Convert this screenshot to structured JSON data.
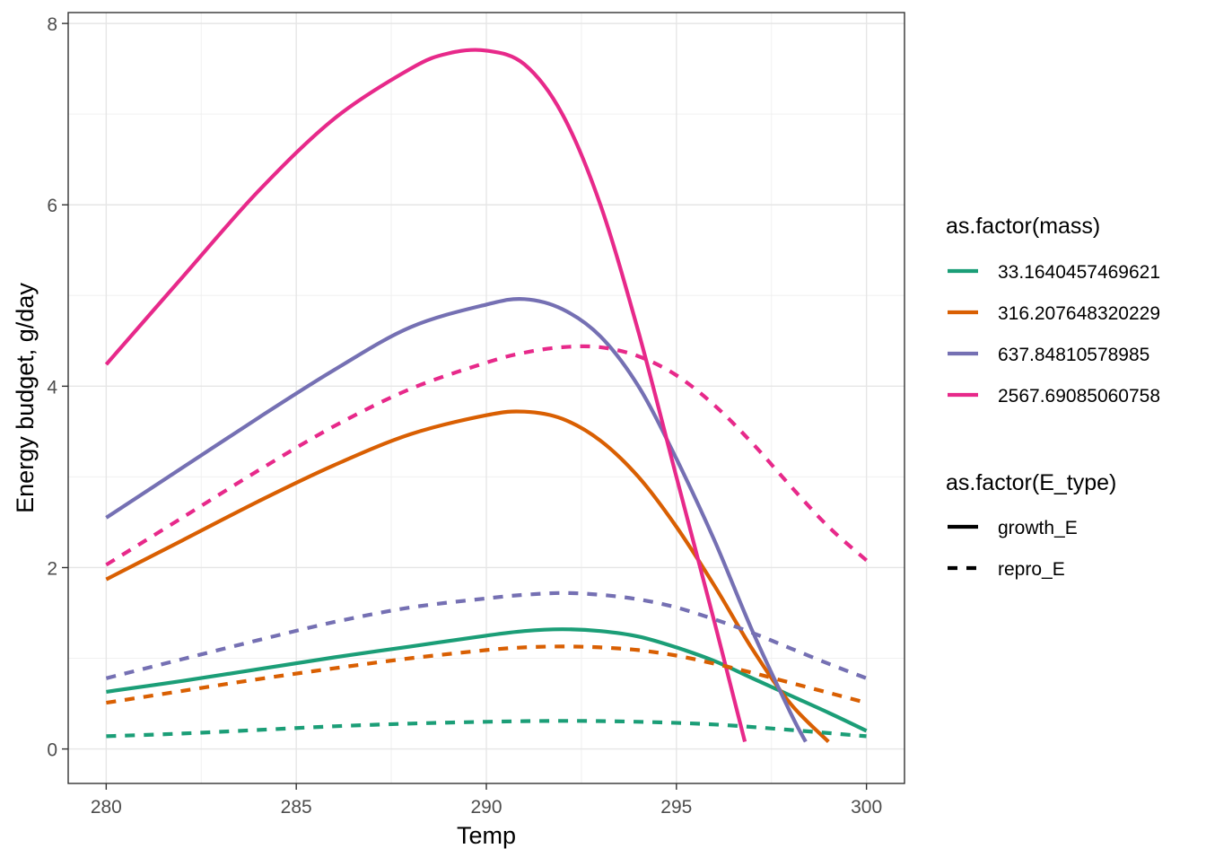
{
  "chart_data": {
    "type": "line",
    "xlabel": "Temp",
    "ylabel": "Energy budget, g/day",
    "xlim": [
      279,
      301
    ],
    "ylim": [
      -0.38,
      8.12
    ],
    "x_ticks": [
      280,
      285,
      290,
      295,
      300
    ],
    "y_ticks": [
      0,
      2,
      4,
      6,
      8
    ],
    "grid": true,
    "legend_placement": "right",
    "legends": [
      {
        "title": "as.factor(mass)",
        "entries": [
          {
            "label": "33.1640457469621",
            "color": "#1B9E77"
          },
          {
            "label": "316.207648320229",
            "color": "#D95F02"
          },
          {
            "label": "637.84810578985",
            "color": "#7570B3"
          },
          {
            "label": "2567.69085060758",
            "color": "#E7298A"
          }
        ]
      },
      {
        "title": "as.factor(E_type)",
        "entries": [
          {
            "label": "growth_E",
            "linetype": "solid"
          },
          {
            "label": "repro_E",
            "linetype": "dashed"
          }
        ]
      }
    ],
    "series": [
      {
        "mass": "33.1640457469621",
        "E_type": "growth_E",
        "color": "#1B9E77",
        "linetype": "solid",
        "x": [
          280,
          282,
          284,
          286,
          288,
          290,
          291,
          292,
          293,
          294,
          295,
          296,
          297,
          298,
          299,
          300
        ],
        "y": [
          0.63,
          0.75,
          0.88,
          1.01,
          1.13,
          1.25,
          1.3,
          1.32,
          1.3,
          1.24,
          1.12,
          0.97,
          0.78,
          0.59,
          0.4,
          0.2
        ]
      },
      {
        "mass": "316.207648320229",
        "E_type": "growth_E",
        "color": "#D95F02",
        "linetype": "solid",
        "x": [
          280,
          282,
          284,
          286,
          288,
          290,
          291,
          292,
          293,
          294,
          295,
          296,
          297,
          298,
          299
        ],
        "y": [
          1.87,
          2.3,
          2.73,
          3.13,
          3.47,
          3.68,
          3.72,
          3.64,
          3.4,
          3.0,
          2.45,
          1.8,
          1.1,
          0.5,
          0.08
        ]
      },
      {
        "mass": "637.84810578985",
        "E_type": "growth_E",
        "color": "#7570B3",
        "linetype": "solid",
        "x": [
          280,
          282,
          284,
          286,
          288,
          290,
          291,
          292,
          293,
          294,
          295,
          296,
          297,
          298,
          298.4
        ],
        "y": [
          2.55,
          3.1,
          3.65,
          4.18,
          4.65,
          4.9,
          4.96,
          4.85,
          4.55,
          4.0,
          3.2,
          2.3,
          1.3,
          0.4,
          0.08
        ]
      },
      {
        "mass": "2567.69085060758",
        "E_type": "growth_E",
        "color": "#E7298A",
        "linetype": "solid",
        "x": [
          280,
          282,
          284,
          286,
          288,
          289,
          290,
          291,
          292,
          293,
          294,
          295,
          296,
          296.8
        ],
        "y": [
          4.24,
          5.2,
          6.15,
          6.95,
          7.5,
          7.67,
          7.7,
          7.55,
          7.0,
          6.0,
          4.6,
          3.0,
          1.4,
          0.08
        ]
      },
      {
        "mass": "33.1640457469621",
        "E_type": "repro_E",
        "color": "#1B9E77",
        "linetype": "dashed",
        "x": [
          280,
          282,
          284,
          286,
          288,
          290,
          292,
          294,
          296,
          298,
          300
        ],
        "y": [
          0.14,
          0.17,
          0.21,
          0.25,
          0.28,
          0.3,
          0.31,
          0.3,
          0.27,
          0.21,
          0.14
        ]
      },
      {
        "mass": "316.207648320229",
        "E_type": "repro_E",
        "color": "#D95F02",
        "linetype": "dashed",
        "x": [
          280,
          282,
          284,
          286,
          288,
          290,
          291,
          292,
          293,
          294,
          295,
          296,
          297,
          298,
          299,
          300
        ],
        "y": [
          0.51,
          0.64,
          0.77,
          0.89,
          1.0,
          1.09,
          1.12,
          1.13,
          1.12,
          1.09,
          1.03,
          0.94,
          0.84,
          0.73,
          0.62,
          0.51
        ]
      },
      {
        "mass": "637.84810578985",
        "E_type": "repro_E",
        "color": "#7570B3",
        "linetype": "dashed",
        "x": [
          280,
          282,
          284,
          286,
          288,
          290,
          291,
          292,
          293,
          294,
          295,
          296,
          297,
          298,
          299,
          300
        ],
        "y": [
          0.78,
          0.99,
          1.2,
          1.4,
          1.56,
          1.66,
          1.7,
          1.72,
          1.7,
          1.65,
          1.56,
          1.43,
          1.28,
          1.11,
          0.94,
          0.78
        ]
      },
      {
        "mass": "2567.69085060758",
        "E_type": "repro_E",
        "color": "#E7298A",
        "linetype": "dashed",
        "x": [
          280,
          282,
          284,
          286,
          288,
          290,
          291,
          292,
          293,
          294,
          295,
          296,
          297,
          298,
          299,
          300
        ],
        "y": [
          2.03,
          2.55,
          3.07,
          3.56,
          3.97,
          4.26,
          4.37,
          4.43,
          4.43,
          4.33,
          4.12,
          3.79,
          3.37,
          2.9,
          2.45,
          2.08
        ]
      }
    ]
  }
}
